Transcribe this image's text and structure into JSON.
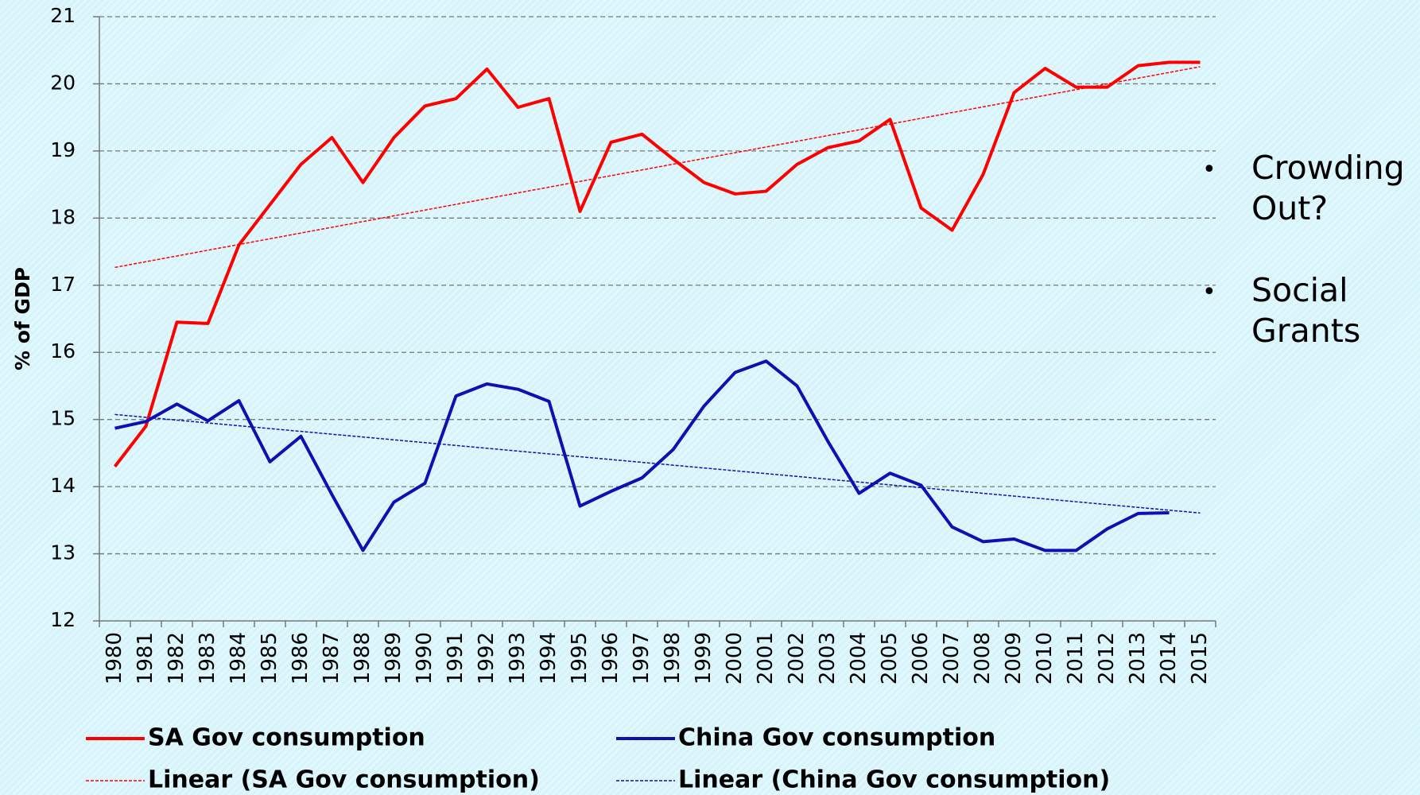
{
  "chart_data": {
    "type": "line",
    "y_label": "% of GDP",
    "categories": [
      "1980",
      "1981",
      "1982",
      "1983",
      "1984",
      "1985",
      "1986",
      "1987",
      "1988",
      "1989",
      "1990",
      "1991",
      "1992",
      "1993",
      "1994",
      "1995",
      "1996",
      "1997",
      "1998",
      "1999",
      "2000",
      "2001",
      "2002",
      "2003",
      "2004",
      "2005",
      "2006",
      "2007",
      "2008",
      "2009",
      "2010",
      "2011",
      "2012",
      "2013",
      "2014",
      "2015"
    ],
    "series": [
      {
        "name": "SA Gov consumption",
        "color": "#ff0000",
        "values": [
          14.3,
          14.9,
          16.45,
          16.43,
          17.6,
          18.2,
          18.8,
          19.2,
          18.53,
          19.2,
          19.67,
          19.78,
          20.22,
          19.65,
          19.78,
          18.1,
          19.13,
          19.25,
          18.88,
          18.53,
          18.36,
          18.4,
          18.8,
          19.05,
          19.15,
          19.47,
          18.15,
          17.82,
          18.65,
          19.87,
          20.23,
          19.95,
          19.95,
          20.27,
          20.32,
          20.32
        ]
      },
      {
        "name": "China Gov consumption",
        "color": "#1010b0",
        "values": [
          14.87,
          14.97,
          15.23,
          14.98,
          15.28,
          14.37,
          14.75,
          13.88,
          13.05,
          13.77,
          14.05,
          15.35,
          15.53,
          15.45,
          15.27,
          13.71,
          13.93,
          14.13,
          14.55,
          15.2,
          15.7,
          15.87,
          15.5,
          14.67,
          13.9,
          14.2,
          14.02,
          13.4,
          13.18,
          13.22,
          13.05,
          13.05,
          13.37,
          13.6,
          13.61,
          null
        ]
      }
    ],
    "trendlines": [
      {
        "name": "Linear (SA Gov consumption)",
        "color": "#ff0000",
        "series": 0
      },
      {
        "name": "Linear (China Gov consumption)",
        "color": "#1010b0",
        "series": 1
      }
    ],
    "ylim": [
      12,
      21
    ],
    "yticks": [
      12,
      13,
      14,
      15,
      16,
      17,
      18,
      19,
      20,
      21
    ],
    "grid": true,
    "annotations": [
      "Crowding Out?",
      "Social Grants"
    ]
  }
}
